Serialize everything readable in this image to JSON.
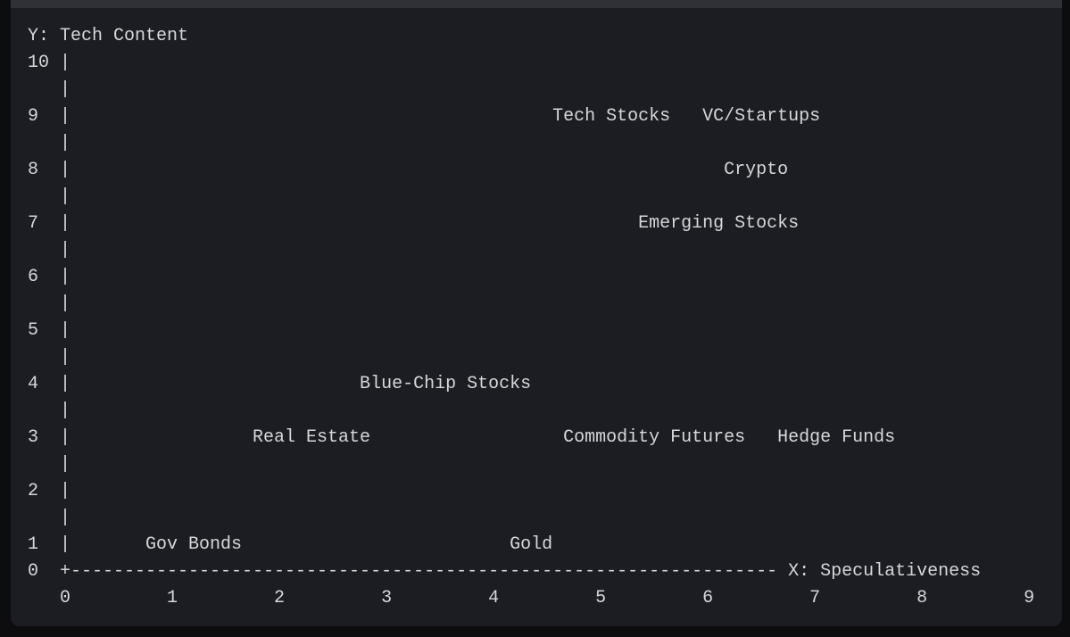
{
  "code_block": {
    "lines": [
      "Y: Tech Content",
      "10 |",
      "   |",
      "9  |                                             Tech Stocks   VC/Startups",
      "   |",
      "8  |                                                             Crypto",
      "   |",
      "7  |                                                     Emerging Stocks",
      "   |",
      "6  |",
      "   |",
      "5  |",
      "   |",
      "4  |                           Blue-Chip Stocks",
      "   |",
      "3  |                 Real Estate                  Commodity Futures   Hedge Funds",
      "   |",
      "2  |",
      "   |",
      "1  |       Gov Bonds                         Gold",
      "0  +------------------------------------------------------------------ X: Speculativeness",
      "   0         1         2         3         4         5         6         7         8         9"
    ]
  }
}
